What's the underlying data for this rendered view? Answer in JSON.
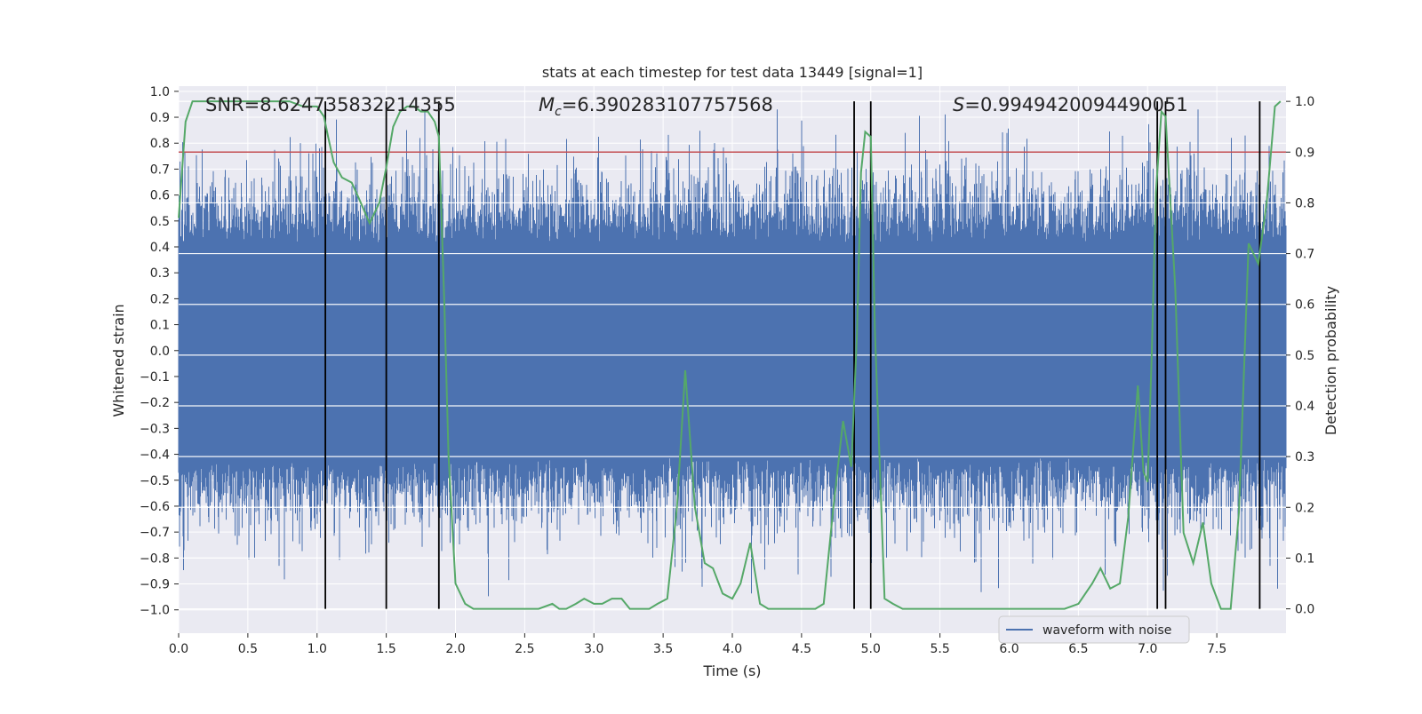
{
  "chart_data": {
    "type": "line",
    "title": "stats at each timestep for test data 13449 [signal=1]",
    "xlabel": "Time (s)",
    "ylabel_left": "Whitened strain",
    "ylabel_right": "Detection probability",
    "xlim": [
      0.0,
      8.0
    ],
    "ylim_left": [
      -1.09,
      1.02
    ],
    "ylim_right": [
      -0.048,
      1.03
    ],
    "x_ticks": [
      "0.0",
      "0.5",
      "1.0",
      "1.5",
      "2.0",
      "2.5",
      "3.0",
      "3.5",
      "4.0",
      "4.5",
      "5.0",
      "5.5",
      "6.0",
      "6.5",
      "7.0",
      "7.5"
    ],
    "y_ticks_left": [
      "1.0",
      "0.9",
      "0.8",
      "0.7",
      "0.6",
      "0.5",
      "0.4",
      "0.3",
      "0.2",
      "0.1",
      "0.0",
      "−0.1",
      "−0.2",
      "−0.3",
      "−0.4",
      "−0.5",
      "−0.6",
      "−0.7",
      "−0.8",
      "−0.9",
      "−1.0"
    ],
    "y_ticks_right": [
      "1.0",
      "0.9",
      "0.8",
      "0.7",
      "0.6",
      "0.5",
      "0.4",
      "0.3",
      "0.2",
      "0.1",
      "0.0"
    ],
    "annotations": {
      "snr": "SNR=8.624735832214355",
      "mc_value": "=6.390283107757568",
      "s_value": "=0.9949420094490051"
    },
    "threshold_right": 0.9,
    "event_lines_x": [
      1.06,
      1.5,
      1.88,
      4.88,
      5.0,
      7.07,
      7.13,
      7.81
    ],
    "waveform": {
      "name": "waveform with noise",
      "x_range": [
        0.0,
        8.0
      ],
      "envelope_upper": 0.45,
      "envelope_lower": -0.45,
      "peak_max": 0.93,
      "peak_min": -0.96
    },
    "probability": {
      "x": [
        0.0,
        0.05,
        0.1,
        0.15,
        0.2,
        0.3,
        0.4,
        0.5,
        0.6,
        0.7,
        0.8,
        0.9,
        1.0,
        1.05,
        1.08,
        1.12,
        1.18,
        1.25,
        1.3,
        1.38,
        1.45,
        1.5,
        1.55,
        1.6,
        1.65,
        1.7,
        1.75,
        1.8,
        1.85,
        1.88,
        1.92,
        1.95,
        2.0,
        2.07,
        2.13,
        2.2,
        2.3,
        2.4,
        2.5,
        2.6,
        2.7,
        2.75,
        2.8,
        2.87,
        2.93,
        3.0,
        3.06,
        3.13,
        3.2,
        3.26,
        3.33,
        3.4,
        3.46,
        3.53,
        3.6,
        3.66,
        3.73,
        3.8,
        3.86,
        3.93,
        4.0,
        4.06,
        4.13,
        4.2,
        4.26,
        4.33,
        4.4,
        4.46,
        4.53,
        4.6,
        4.66,
        4.73,
        4.8,
        4.86,
        4.9,
        4.93,
        4.96,
        5.0,
        5.03,
        5.1,
        5.16,
        5.23,
        5.3,
        5.4,
        5.5,
        5.6,
        5.7,
        5.8,
        5.9,
        6.0,
        6.1,
        6.2,
        6.3,
        6.4,
        6.5,
        6.6,
        6.66,
        6.73,
        6.8,
        6.86,
        6.93,
        6.97,
        7.0,
        7.03,
        7.06,
        7.1,
        7.13,
        7.2,
        7.26,
        7.33,
        7.4,
        7.46,
        7.53,
        7.6,
        7.66,
        7.73,
        7.8,
        7.86,
        7.92,
        7.96
      ],
      "values": [
        0.77,
        0.96,
        1.0,
        1.0,
        1.0,
        1.0,
        1.0,
        1.0,
        1.0,
        1.0,
        1.0,
        0.99,
        0.99,
        0.97,
        0.93,
        0.88,
        0.85,
        0.84,
        0.81,
        0.76,
        0.8,
        0.87,
        0.95,
        0.98,
        0.99,
        0.99,
        0.98,
        0.98,
        0.96,
        0.93,
        0.6,
        0.3,
        0.05,
        0.01,
        0.0,
        0.0,
        0.0,
        0.0,
        0.0,
        0.0,
        0.01,
        0.0,
        0.0,
        0.01,
        0.02,
        0.01,
        0.01,
        0.02,
        0.02,
        0.0,
        0.0,
        0.0,
        0.01,
        0.02,
        0.2,
        0.47,
        0.2,
        0.09,
        0.08,
        0.03,
        0.02,
        0.05,
        0.13,
        0.01,
        0.0,
        0.0,
        0.0,
        0.0,
        0.0,
        0.0,
        0.01,
        0.2,
        0.37,
        0.28,
        0.54,
        0.86,
        0.94,
        0.93,
        0.55,
        0.02,
        0.01,
        0.0,
        0.0,
        0.0,
        0.0,
        0.0,
        0.0,
        0.0,
        0.0,
        0.0,
        0.0,
        0.0,
        0.0,
        0.0,
        0.01,
        0.05,
        0.08,
        0.04,
        0.05,
        0.18,
        0.44,
        0.27,
        0.25,
        0.5,
        0.82,
        0.98,
        0.97,
        0.63,
        0.15,
        0.09,
        0.17,
        0.05,
        0.0,
        0.0,
        0.19,
        0.72,
        0.68,
        0.8,
        0.99,
        1.0
      ]
    },
    "legend": {
      "label": "waveform with noise",
      "position": "lower-center-right"
    },
    "colors": {
      "background": "#eaeaf2",
      "grid": "#ffffff",
      "waveform": "#4c72b0",
      "probability": "#55a868",
      "threshold": "#c44e52",
      "event_line": "#000000"
    }
  }
}
